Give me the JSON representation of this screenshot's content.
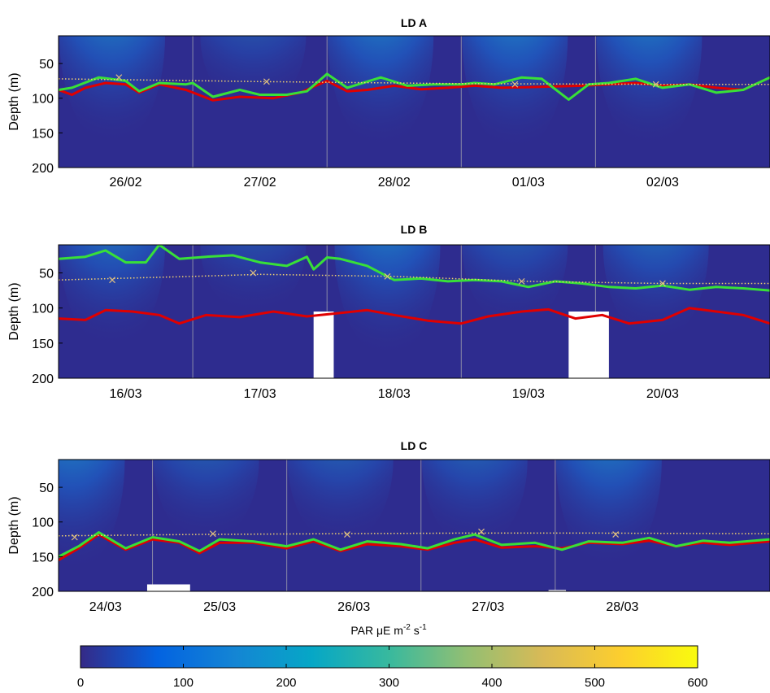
{
  "colors": {
    "background": "#2e2c8f",
    "surface_line": "#00c400",
    "surface_glow": "#f5c400",
    "red_line": "#e00000",
    "green_line": "#38e038",
    "dotted_line": "#f0d070",
    "marker": "#e0c080",
    "day_divider": "#8a8aa8",
    "gap": "#ffffff",
    "colormap": [
      "#352a87",
      "#0363e1",
      "#1485d4",
      "#06a7c6",
      "#38b99e",
      "#92bf73",
      "#d9ba56",
      "#fcce2e",
      "#f9fb0e"
    ]
  },
  "colorbar": {
    "label_main": "PAR μE m",
    "label_exp1": "-2",
    "label_mid": " s",
    "label_exp2": "-1",
    "min": 0,
    "max": 600,
    "ticks": [
      0,
      100,
      200,
      300,
      400,
      500,
      600
    ],
    "tick_labels": [
      "0",
      "100",
      "200",
      "300",
      "400",
      "500",
      "600"
    ]
  },
  "chart_data": [
    {
      "type": "heatmap",
      "title": "LD A",
      "ylabel": "Depth (m)",
      "ylim": [
        200,
        10
      ],
      "yticks": [
        50,
        100,
        150,
        200
      ],
      "ytick_labels": [
        "50",
        "100",
        "150",
        "200"
      ],
      "x_days": [
        "26/02",
        "27/02",
        "28/02",
        "01/03",
        "02/03"
      ],
      "xtick_labels": [
        "26/02",
        "27/02",
        "28/02",
        "01/03",
        "02/03"
      ],
      "xlim": [
        0,
        5.3
      ],
      "day_boundaries": [
        1,
        2,
        3,
        4
      ],
      "light_peaks": [
        {
          "day": 0.4,
          "intensity": 0.8
        },
        {
          "day": 1.45,
          "intensity": 0.2
        },
        {
          "day": 2.4,
          "intensity": 0.85
        },
        {
          "day": 3.4,
          "intensity": 0.9
        },
        {
          "day": 4.4,
          "intensity": 0.85
        }
      ],
      "series": [
        {
          "role": "red",
          "x": [
            0,
            0.1,
            0.2,
            0.35,
            0.5,
            0.6,
            0.75,
            0.95,
            1.15,
            1.35,
            1.6,
            1.8,
            2.0,
            2.15,
            2.3,
            2.5,
            2.7,
            2.9,
            3.1,
            3.3,
            3.5,
            3.7,
            3.9,
            4.1,
            4.3,
            4.5,
            4.7,
            4.9,
            5.1,
            5.3
          ],
          "y": [
            88,
            95,
            85,
            78,
            80,
            92,
            80,
            88,
            103,
            98,
            100,
            92,
            75,
            90,
            88,
            82,
            87,
            85,
            82,
            85,
            84,
            83,
            82,
            80,
            78,
            82,
            80,
            85,
            88,
            70
          ]
        },
        {
          "role": "green",
          "x": [
            0,
            0.1,
            0.3,
            0.5,
            0.6,
            0.75,
            0.95,
            1.0,
            1.15,
            1.35,
            1.5,
            1.7,
            1.85,
            2.0,
            2.15,
            2.4,
            2.6,
            2.8,
            3.0,
            3.1,
            3.25,
            3.45,
            3.6,
            3.8,
            3.95,
            4.1,
            4.3,
            4.5,
            4.7,
            4.9,
            5.1,
            5.3
          ],
          "y": [
            88,
            85,
            70,
            75,
            90,
            78,
            80,
            78,
            98,
            88,
            95,
            95,
            90,
            65,
            85,
            70,
            82,
            80,
            80,
            78,
            80,
            70,
            72,
            102,
            80,
            78,
            72,
            85,
            80,
            92,
            88,
            70
          ]
        },
        {
          "role": "dotted",
          "x": [
            0,
            1.5,
            3.0,
            4.5,
            5.3
          ],
          "y": [
            72,
            76,
            79,
            80,
            80
          ]
        }
      ],
      "markers": [
        {
          "x": 0.45,
          "y": 70
        },
        {
          "x": 1.55,
          "y": 76
        },
        {
          "x": 3.4,
          "y": 80
        },
        {
          "x": 4.45,
          "y": 80
        }
      ]
    },
    {
      "type": "heatmap",
      "title": "LD B",
      "ylabel": "Depth (m)",
      "ylim": [
        200,
        10
      ],
      "yticks": [
        50,
        100,
        150,
        200
      ],
      "ytick_labels": [
        "50",
        "100",
        "150",
        "200"
      ],
      "x_days": [
        "16/03",
        "17/03",
        "18/03",
        "19/03",
        "20/03"
      ],
      "xtick_labels": [
        "16/03",
        "17/03",
        "18/03",
        "19/03",
        "20/03"
      ],
      "xlim": [
        0,
        5.3
      ],
      "day_boundaries": [
        1,
        2,
        3,
        4
      ],
      "light_peaks": [
        {
          "day": 0.4,
          "intensity": 0.7
        },
        {
          "day": 1.45,
          "intensity": 0.15
        },
        {
          "day": 2.45,
          "intensity": 0.85
        },
        {
          "day": 3.4,
          "intensity": 0.35
        },
        {
          "day": 4.45,
          "intensity": 0.6
        }
      ],
      "gaps": [
        {
          "x0": 1.9,
          "x1": 2.05,
          "y0": 105,
          "y1": 200
        },
        {
          "x0": 3.8,
          "x1": 4.1,
          "y0": 105,
          "y1": 200
        }
      ],
      "series": [
        {
          "role": "red",
          "x": [
            0,
            0.2,
            0.35,
            0.55,
            0.75,
            0.9,
            1.1,
            1.35,
            1.6,
            1.85,
            2.05,
            2.3,
            2.5,
            2.75,
            3.0,
            3.2,
            3.45,
            3.65,
            3.85,
            4.05,
            4.25,
            4.5,
            4.7,
            4.9,
            5.1,
            5.3
          ],
          "y": [
            115,
            117,
            103,
            105,
            110,
            122,
            110,
            113,
            105,
            112,
            108,
            103,
            110,
            118,
            122,
            112,
            105,
            102,
            115,
            110,
            122,
            117,
            100,
            105,
            110,
            122
          ]
        },
        {
          "role": "green",
          "x": [
            0,
            0.2,
            0.35,
            0.5,
            0.65,
            0.75,
            0.9,
            1.1,
            1.3,
            1.5,
            1.7,
            1.85,
            1.9,
            2.0,
            2.1,
            2.3,
            2.5,
            2.7,
            2.9,
            3.1,
            3.3,
            3.5,
            3.7,
            3.9,
            4.1,
            4.3,
            4.5,
            4.7,
            4.9,
            5.1,
            5.3
          ],
          "y": [
            30,
            27,
            18,
            35,
            35,
            10,
            30,
            27,
            25,
            35,
            40,
            27,
            45,
            28,
            30,
            40,
            60,
            58,
            62,
            60,
            62,
            70,
            62,
            65,
            70,
            72,
            68,
            74,
            70,
            72,
            75
          ]
        },
        {
          "role": "dotted",
          "x": [
            0,
            1.0,
            1.5,
            2.5,
            3.5,
            4.5,
            5.3
          ],
          "y": [
            60,
            55,
            52,
            55,
            62,
            65,
            65
          ]
        }
      ],
      "markers": [
        {
          "x": 0.4,
          "y": 60
        },
        {
          "x": 1.45,
          "y": 50
        },
        {
          "x": 2.45,
          "y": 55
        },
        {
          "x": 3.45,
          "y": 62
        },
        {
          "x": 4.5,
          "y": 65
        }
      ]
    },
    {
      "type": "heatmap",
      "title": "LD C",
      "ylabel": "Depth (m)",
      "ylim": [
        200,
        10
      ],
      "yticks": [
        50,
        100,
        150,
        200
      ],
      "ytick_labels": [
        "50",
        "100",
        "150",
        "200"
      ],
      "x_days": [
        "24/03",
        "25/03",
        "26/03",
        "27/03",
        "28/03"
      ],
      "xtick_labels": [
        "24/03",
        "25/03",
        "26/03",
        "27/03",
        "28/03"
      ],
      "xlim": [
        0,
        5.3
      ],
      "day_boundaries": [
        0.7,
        1.7,
        2.7,
        3.7
      ],
      "light_peaks": [
        {
          "day": 0.1,
          "intensity": 0.85
        },
        {
          "day": 1.1,
          "intensity": 0.35
        },
        {
          "day": 2.1,
          "intensity": 0.4
        },
        {
          "day": 3.1,
          "intensity": 0.45
        },
        {
          "day": 4.1,
          "intensity": 0.8
        }
      ],
      "gaps": [
        {
          "x0": 0.66,
          "x1": 0.98,
          "y0": 190,
          "y1": 200
        },
        {
          "x0": 3.65,
          "x1": 3.78,
          "y0": 198,
          "y1": 200
        }
      ],
      "series": [
        {
          "role": "red",
          "x": [
            0,
            0.15,
            0.3,
            0.5,
            0.7,
            0.9,
            1.05,
            1.2,
            1.45,
            1.7,
            1.9,
            2.1,
            2.3,
            2.55,
            2.75,
            2.95,
            3.1,
            3.3,
            3.55,
            3.75,
            3.95,
            4.2,
            4.4,
            4.6,
            4.8,
            5.0,
            5.3
          ],
          "y": [
            155,
            138,
            118,
            140,
            125,
            130,
            145,
            130,
            130,
            138,
            128,
            142,
            132,
            135,
            140,
            130,
            125,
            137,
            135,
            138,
            130,
            132,
            127,
            135,
            130,
            133,
            128
          ]
        },
        {
          "role": "green",
          "x": [
            0,
            0.15,
            0.3,
            0.5,
            0.7,
            0.9,
            1.05,
            1.2,
            1.45,
            1.7,
            1.9,
            2.1,
            2.3,
            2.55,
            2.75,
            2.95,
            3.1,
            3.3,
            3.55,
            3.75,
            3.95,
            4.2,
            4.4,
            4.6,
            4.8,
            5.0,
            5.3
          ],
          "y": [
            150,
            135,
            115,
            138,
            122,
            128,
            142,
            125,
            128,
            135,
            125,
            140,
            128,
            132,
            138,
            125,
            118,
            133,
            130,
            140,
            128,
            130,
            123,
            135,
            127,
            130,
            125
          ]
        },
        {
          "role": "dotted",
          "x": [
            0,
            1.0,
            2.0,
            3.0,
            4.0,
            5.3
          ],
          "y": [
            120,
            118,
            117,
            116,
            116,
            117
          ]
        }
      ],
      "markers": [
        {
          "x": 0.12,
          "y": 122
        },
        {
          "x": 1.15,
          "y": 117
        },
        {
          "x": 2.15,
          "y": 118
        },
        {
          "x": 3.15,
          "y": 114
        },
        {
          "x": 4.15,
          "y": 118
        }
      ]
    }
  ]
}
